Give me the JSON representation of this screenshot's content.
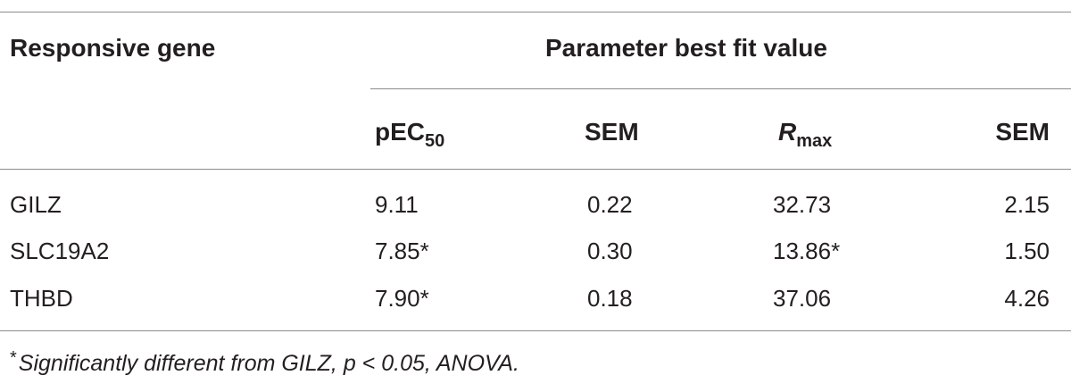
{
  "table": {
    "header": {
      "col_gene": "Responsive gene",
      "group": "Parameter best fit value",
      "pec_main": "pEC",
      "pec_sub": "50",
      "sem1": "SEM",
      "rmax_main": "R",
      "rmax_sub": "max",
      "sem2": "SEM"
    },
    "rows": [
      {
        "gene": "GILZ",
        "pec50": "9.11",
        "sem1": "0.22",
        "rmax": "32.73",
        "sem2": "2.15"
      },
      {
        "gene": "SLC19A2",
        "pec50": "7.85*",
        "sem1": "0.30",
        "rmax": "13.86*",
        "sem2": "1.50"
      },
      {
        "gene": "THBD",
        "pec50": "7.90*",
        "sem1": "0.18",
        "rmax": "37.06",
        "sem2": "4.26"
      }
    ],
    "footnote": {
      "marker": "*",
      "text": "Significantly different from GILZ, p < 0.05, ANOVA."
    }
  }
}
